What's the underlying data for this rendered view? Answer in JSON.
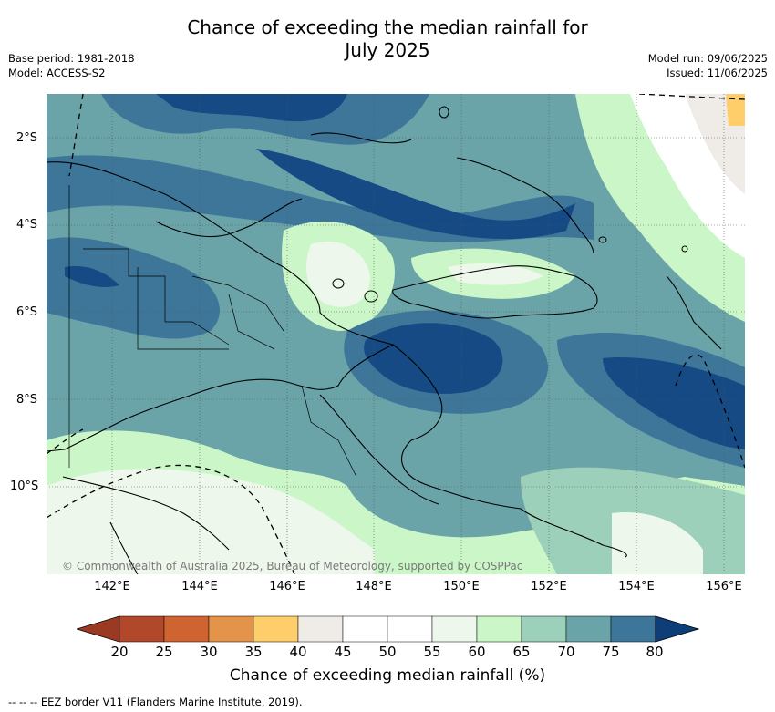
{
  "title": {
    "line1": "Chance of exceeding the median rainfall for",
    "line2": "July 2025"
  },
  "meta": {
    "base_period": "Base period: 1981-2018",
    "model": "Model: ACCESS-S2",
    "model_run": "Model run: 09/06/2025",
    "issued": "Issued: 11/06/2025"
  },
  "lat_labels": [
    "2°S",
    "4°S",
    "6°S",
    "8°S",
    "10°S"
  ],
  "lon_labels": [
    "142°E",
    "144°E",
    "146°E",
    "148°E",
    "150°E",
    "152°E",
    "154°E",
    "156°E"
  ],
  "copyright": "© Commonwealth of Australia 2025, Bureau of Meteorology, supported by COSPPac",
  "colorbar": {
    "ticks": [
      "20",
      "25",
      "30",
      "35",
      "40",
      "45",
      "50",
      "55",
      "60",
      "65",
      "70",
      "75",
      "80"
    ],
    "colors": [
      "#b1482a",
      "#cf6430",
      "#e3944a",
      "#fdce6a",
      "#efece8",
      "#ffffff",
      "#ffffff",
      "#eef7eb",
      "#cbf7c8",
      "#9cd0ba",
      "#6aa4a9",
      "#3e7699",
      "#154a84"
    ],
    "under_color": "#9a3a22",
    "over_color": "#0e3e78",
    "label": "Chance of exceeding median rainfall (%)"
  },
  "footnote": "--  --  -- EEZ border V11 (Flanders Marine Institute, 2019)."
}
